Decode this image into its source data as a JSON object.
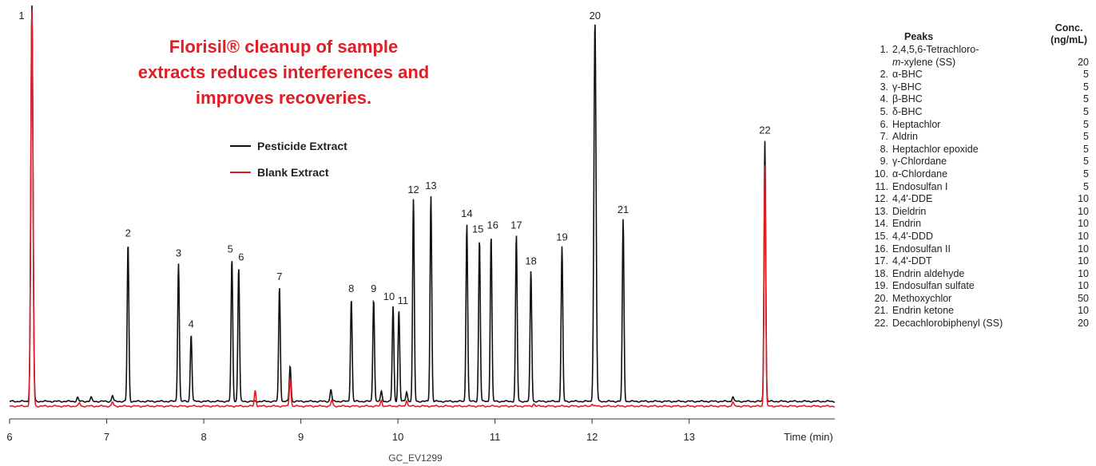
{
  "chart_data": {
    "type": "line",
    "title": "Florisil® cleanup of sample extracts reduces interferences and improves recoveries.",
    "xlabel": "Time (min)",
    "xlim": [
      6,
      14.5
    ],
    "x_ticks": [
      6,
      7,
      8,
      9,
      10,
      11,
      12,
      13
    ],
    "y_axis_shown": false,
    "legend_position": "upper-left",
    "footer": "GC_EV1299",
    "series": [
      {
        "name": "Pesticide Extract",
        "color": "#111111",
        "peaks": [
          {
            "label": "1",
            "rt": 6.23,
            "height": 1.0
          },
          {
            "label": "2",
            "rt": 7.22,
            "height": 0.4
          },
          {
            "label": "3",
            "rt": 7.74,
            "height": 0.35
          },
          {
            "label": "4",
            "rt": 7.87,
            "height": 0.17
          },
          {
            "label": "5",
            "rt": 8.29,
            "height": 0.36
          },
          {
            "label": "6",
            "rt": 8.36,
            "height": 0.34
          },
          {
            "label": "7",
            "rt": 8.78,
            "height": 0.29
          },
          {
            "label": "8",
            "rt": 9.52,
            "height": 0.26
          },
          {
            "label": "9",
            "rt": 9.75,
            "height": 0.26
          },
          {
            "label": "10",
            "rt": 9.95,
            "height": 0.24
          },
          {
            "label": "11",
            "rt": 10.01,
            "height": 0.23
          },
          {
            "label": "12",
            "rt": 10.16,
            "height": 0.51
          },
          {
            "label": "13",
            "rt": 10.34,
            "height": 0.52
          },
          {
            "label": "14",
            "rt": 10.71,
            "height": 0.45
          },
          {
            "label": "15",
            "rt": 10.84,
            "height": 0.41
          },
          {
            "label": "16",
            "rt": 10.96,
            "height": 0.42
          },
          {
            "label": "17",
            "rt": 11.22,
            "height": 0.42
          },
          {
            "label": "18",
            "rt": 11.37,
            "height": 0.33
          },
          {
            "label": "19",
            "rt": 11.69,
            "height": 0.39
          },
          {
            "label": "20",
            "rt": 12.03,
            "height": 0.96
          },
          {
            "label": "21",
            "rt": 12.32,
            "height": 0.46
          },
          {
            "label": "22",
            "rt": 13.78,
            "height": 0.66
          }
        ],
        "minor_peaks": [
          {
            "rt": 6.7,
            "height": 0.01
          },
          {
            "rt": 6.84,
            "height": 0.01
          },
          {
            "rt": 7.06,
            "height": 0.015
          },
          {
            "rt": 8.89,
            "height": 0.09
          },
          {
            "rt": 9.31,
            "height": 0.03
          },
          {
            "rt": 9.83,
            "height": 0.025
          },
          {
            "rt": 10.09,
            "height": 0.025
          },
          {
            "rt": 13.45,
            "height": 0.012
          }
        ]
      },
      {
        "name": "Blank Extract",
        "color": "#e31b23",
        "peaks": [
          {
            "rt": 6.23,
            "height": 1.0
          },
          {
            "rt": 8.53,
            "height": 0.04
          },
          {
            "rt": 8.89,
            "height": 0.07
          },
          {
            "rt": 9.32,
            "height": 0.015
          },
          {
            "rt": 9.83,
            "height": 0.015
          },
          {
            "rt": 10.09,
            "height": 0.015
          },
          {
            "rt": 13.78,
            "height": 0.61
          }
        ],
        "minor_peaks": [
          {
            "rt": 6.72,
            "height": 0.008
          },
          {
            "rt": 7.06,
            "height": 0.01
          },
          {
            "rt": 11.4,
            "height": 0.006
          },
          {
            "rt": 12.0,
            "height": 0.006
          },
          {
            "rt": 13.45,
            "height": 0.01
          }
        ]
      }
    ]
  },
  "peaks_table": {
    "peaks_header": "Peaks",
    "conc_header_line1": "Conc.",
    "conc_header_line2": "(ng/mL)",
    "rows": [
      {
        "num": "1.",
        "name": "2,4,5,6-Tetrachloro-",
        "conc": ""
      },
      {
        "num": "",
        "name": "m-xylene (SS)",
        "conc": "20"
      },
      {
        "num": "2.",
        "name": "α-BHC",
        "conc": "5"
      },
      {
        "num": "3.",
        "name": "γ-BHC",
        "conc": "5"
      },
      {
        "num": "4.",
        "name": "β-BHC",
        "conc": "5"
      },
      {
        "num": "5.",
        "name": "δ-BHC",
        "conc": "5"
      },
      {
        "num": "6.",
        "name": "Heptachlor",
        "conc": "5"
      },
      {
        "num": "7.",
        "name": "Aldrin",
        "conc": "5"
      },
      {
        "num": "8.",
        "name": "Heptachlor epoxide",
        "conc": "5"
      },
      {
        "num": "9.",
        "name": "γ-Chlordane",
        "conc": "5"
      },
      {
        "num": "10.",
        "name": "α-Chlordane",
        "conc": "5"
      },
      {
        "num": "11.",
        "name": "Endosulfan I",
        "conc": "5"
      },
      {
        "num": "12.",
        "name": "4,4'-DDE",
        "conc": "10"
      },
      {
        "num": "13.",
        "name": "Dieldrin",
        "conc": "10"
      },
      {
        "num": "14.",
        "name": "Endrin",
        "conc": "10"
      },
      {
        "num": "15.",
        "name": "4,4'-DDD",
        "conc": "10"
      },
      {
        "num": "16.",
        "name": "Endosulfan II",
        "conc": "10"
      },
      {
        "num": "17.",
        "name": "4,4'-DDT",
        "conc": "10"
      },
      {
        "num": "18.",
        "name": "Endrin aldehyde",
        "conc": "10"
      },
      {
        "num": "19.",
        "name": "Endosulfan sulfate",
        "conc": "10"
      },
      {
        "num": "20.",
        "name": "Methoxychlor",
        "conc": "50"
      },
      {
        "num": "21.",
        "name": "Endrin ketone",
        "conc": "10"
      },
      {
        "num": "22.",
        "name": "Decachlorobiphenyl (SS)",
        "conc": "20"
      }
    ]
  }
}
